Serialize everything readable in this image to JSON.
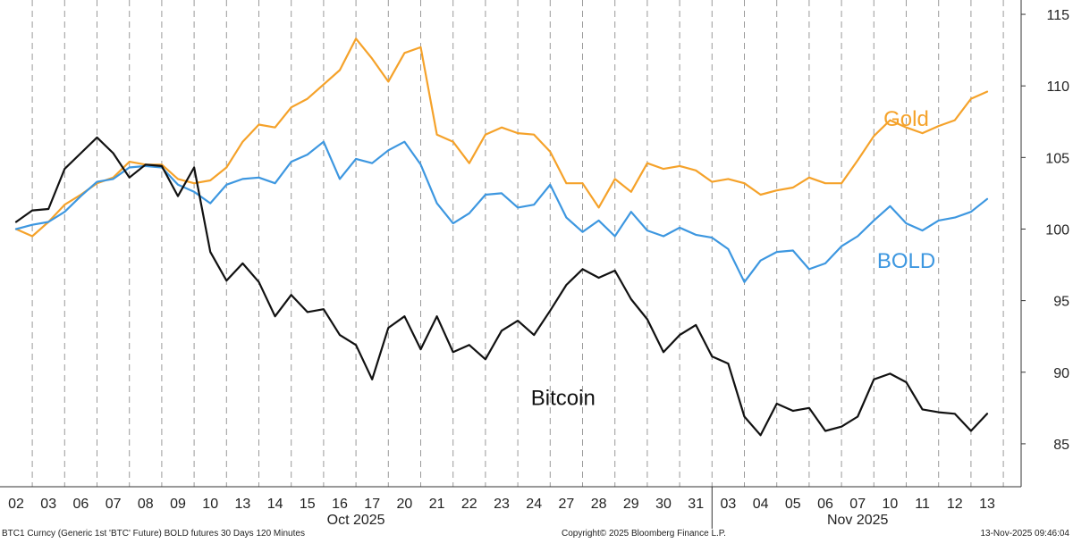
{
  "chart_data": {
    "type": "line",
    "y_range": [
      82,
      116
    ],
    "y_ticks": [
      85,
      90,
      95,
      100,
      105,
      110,
      115
    ],
    "x_ticks": [
      "02",
      "03",
      "06",
      "07",
      "08",
      "09",
      "10",
      "13",
      "14",
      "15",
      "16",
      "17",
      "20",
      "21",
      "22",
      "23",
      "24",
      "27",
      "28",
      "29",
      "30",
      "31",
      "03",
      "04",
      "05",
      "06",
      "07",
      "10",
      "11",
      "12",
      "13"
    ],
    "month_labels": [
      {
        "label": "Oct 2025",
        "from_tick": 0,
        "to_tick": 21
      },
      {
        "label": "Nov 2025",
        "from_tick": 22,
        "to_tick": 30
      }
    ],
    "grid": "vertical dashed",
    "series": [
      {
        "name": "Gold",
        "color": "#f5a22a",
        "values": [
          [
            0,
            100
          ],
          [
            0.5,
            99.5
          ],
          [
            1,
            100.5
          ],
          [
            1.5,
            101.7
          ],
          [
            2,
            102.4
          ],
          [
            2.5,
            103.2
          ],
          [
            3,
            103.6
          ],
          [
            3.5,
            104.7
          ],
          [
            4,
            104.5
          ],
          [
            4.5,
            104.5
          ],
          [
            5,
            103.5
          ],
          [
            5.5,
            103.2
          ],
          [
            6,
            103.4
          ],
          [
            6.5,
            104.3
          ],
          [
            7,
            106.1
          ],
          [
            7.5,
            107.3
          ],
          [
            8,
            107.1
          ],
          [
            8.5,
            108.5
          ],
          [
            9,
            109.1
          ],
          [
            9.5,
            110.1
          ],
          [
            10,
            111.1
          ],
          [
            10.5,
            113.3
          ],
          [
            11,
            111.9
          ],
          [
            11.5,
            110.3
          ],
          [
            12,
            112.3
          ],
          [
            12.5,
            112.7
          ],
          [
            13,
            106.6
          ],
          [
            13.5,
            106.1
          ],
          [
            14,
            104.6
          ],
          [
            14.5,
            106.6
          ],
          [
            15,
            107.1
          ],
          [
            15.5,
            106.7
          ],
          [
            16,
            106.6
          ],
          [
            16.5,
            105.4
          ],
          [
            17,
            103.2
          ],
          [
            17.5,
            103.2
          ],
          [
            18,
            101.5
          ],
          [
            18.5,
            103.5
          ],
          [
            19,
            102.6
          ],
          [
            19.5,
            104.6
          ],
          [
            20,
            104.2
          ],
          [
            20.5,
            104.4
          ],
          [
            21,
            104.1
          ],
          [
            21.5,
            103.3
          ],
          [
            22,
            103.5
          ],
          [
            22.5,
            103.2
          ],
          [
            23,
            102.4
          ],
          [
            23.5,
            102.7
          ],
          [
            24,
            102.9
          ],
          [
            24.5,
            103.6
          ],
          [
            25,
            103.2
          ],
          [
            25.5,
            103.2
          ],
          [
            26,
            104.8
          ],
          [
            26.5,
            106.5
          ],
          [
            27,
            107.6
          ],
          [
            27.5,
            107.1
          ],
          [
            28,
            106.7
          ],
          [
            28.5,
            107.2
          ],
          [
            29,
            107.6
          ],
          [
            29.5,
            109.1
          ],
          [
            30,
            109.6
          ]
        ]
      },
      {
        "name": "BOLD",
        "color": "#3d97e0",
        "values": [
          [
            0,
            100
          ],
          [
            0.5,
            100.3
          ],
          [
            1,
            100.5
          ],
          [
            1.5,
            101.2
          ],
          [
            2,
            102.3
          ],
          [
            2.5,
            103.3
          ],
          [
            3,
            103.5
          ],
          [
            3.5,
            104.3
          ],
          [
            4,
            104.4
          ],
          [
            4.5,
            104.3
          ],
          [
            5,
            103.1
          ],
          [
            5.5,
            102.6
          ],
          [
            6,
            101.8
          ],
          [
            6.5,
            103.1
          ],
          [
            7,
            103.5
          ],
          [
            7.5,
            103.6
          ],
          [
            8,
            103.2
          ],
          [
            8.5,
            104.7
          ],
          [
            9,
            105.2
          ],
          [
            9.5,
            106.1
          ],
          [
            10,
            103.5
          ],
          [
            10.5,
            104.9
          ],
          [
            11,
            104.6
          ],
          [
            11.5,
            105.5
          ],
          [
            12,
            106.1
          ],
          [
            12.5,
            104.5
          ],
          [
            13,
            101.8
          ],
          [
            13.5,
            100.4
          ],
          [
            14,
            101.1
          ],
          [
            14.5,
            102.4
          ],
          [
            15,
            102.5
          ],
          [
            15.5,
            101.5
          ],
          [
            16,
            101.7
          ],
          [
            16.5,
            103.1
          ],
          [
            17,
            100.8
          ],
          [
            17.5,
            99.8
          ],
          [
            18,
            100.6
          ],
          [
            18.5,
            99.5
          ],
          [
            19,
            101.2
          ],
          [
            19.5,
            99.9
          ],
          [
            20,
            99.5
          ],
          [
            20.5,
            100.1
          ],
          [
            21,
            99.6
          ],
          [
            21.5,
            99.4
          ],
          [
            22,
            98.6
          ],
          [
            22.5,
            96.3
          ],
          [
            23,
            97.8
          ],
          [
            23.5,
            98.4
          ],
          [
            24,
            98.5
          ],
          [
            24.5,
            97.2
          ],
          [
            25,
            97.6
          ],
          [
            25.5,
            98.8
          ],
          [
            26,
            99.5
          ],
          [
            26.5,
            100.6
          ],
          [
            27,
            101.6
          ],
          [
            27.5,
            100.4
          ],
          [
            28,
            99.9
          ],
          [
            28.5,
            100.6
          ],
          [
            29,
            100.8
          ],
          [
            29.5,
            101.2
          ],
          [
            30,
            102.1
          ]
        ]
      },
      {
        "name": "Bitcoin",
        "color": "#111111",
        "values": [
          [
            0,
            100.5
          ],
          [
            0.5,
            101.3
          ],
          [
            1,
            101.4
          ],
          [
            1.5,
            104.2
          ],
          [
            2,
            105.3
          ],
          [
            2.5,
            106.4
          ],
          [
            3,
            105.3
          ],
          [
            3.5,
            103.6
          ],
          [
            4,
            104.5
          ],
          [
            4.5,
            104.4
          ],
          [
            5,
            102.3
          ],
          [
            5.5,
            104.3
          ],
          [
            6,
            98.4
          ],
          [
            6.5,
            96.4
          ],
          [
            7,
            97.6
          ],
          [
            7.5,
            96.3
          ],
          [
            8,
            93.9
          ],
          [
            8.5,
            95.4
          ],
          [
            9,
            94.2
          ],
          [
            9.5,
            94.4
          ],
          [
            10,
            92.6
          ],
          [
            10.5,
            91.9
          ],
          [
            11,
            89.5
          ],
          [
            11.5,
            93.1
          ],
          [
            12,
            93.9
          ],
          [
            12.5,
            91.6
          ],
          [
            13,
            93.9
          ],
          [
            13.5,
            91.4
          ],
          [
            14,
            91.9
          ],
          [
            14.5,
            90.9
          ],
          [
            15,
            92.9
          ],
          [
            15.5,
            93.6
          ],
          [
            16,
            92.6
          ],
          [
            16.5,
            94.3
          ],
          [
            17,
            96.1
          ],
          [
            17.5,
            97.2
          ],
          [
            18,
            96.6
          ],
          [
            18.5,
            97.1
          ],
          [
            19,
            95.1
          ],
          [
            19.5,
            93.7
          ],
          [
            20,
            91.4
          ],
          [
            20.5,
            92.6
          ],
          [
            21,
            93.3
          ],
          [
            21.5,
            91.1
          ],
          [
            22,
            90.6
          ],
          [
            22.5,
            86.9
          ],
          [
            23,
            85.6
          ],
          [
            23.5,
            87.8
          ],
          [
            24,
            87.3
          ],
          [
            24.5,
            87.5
          ],
          [
            25,
            85.9
          ],
          [
            25.5,
            86.2
          ],
          [
            26,
            86.9
          ],
          [
            26.5,
            89.5
          ],
          [
            27,
            89.9
          ],
          [
            27.5,
            89.3
          ],
          [
            28,
            87.4
          ],
          [
            28.5,
            87.2
          ],
          [
            29,
            87.1
          ],
          [
            29.5,
            85.9
          ],
          [
            30,
            87.1
          ]
        ]
      }
    ],
    "annotations": [
      {
        "text": "Gold",
        "series": "Gold",
        "x": 27.5,
        "y": 107.2
      },
      {
        "text": "BOLD",
        "series": "BOLD",
        "x": 27.5,
        "y": 97.3
      },
      {
        "text": "Bitcoin",
        "series": "Bitcoin",
        "x": 16.9,
        "y": 87.7
      }
    ]
  },
  "footer": {
    "left": "BTC1 Curncy (Generic 1st 'BTC' Future) BOLD futures 30 Days 120 Minutes",
    "center": "Copyright© 2025 Bloomberg Finance L.P.",
    "right": "13-Nov-2025 09:46:04"
  }
}
